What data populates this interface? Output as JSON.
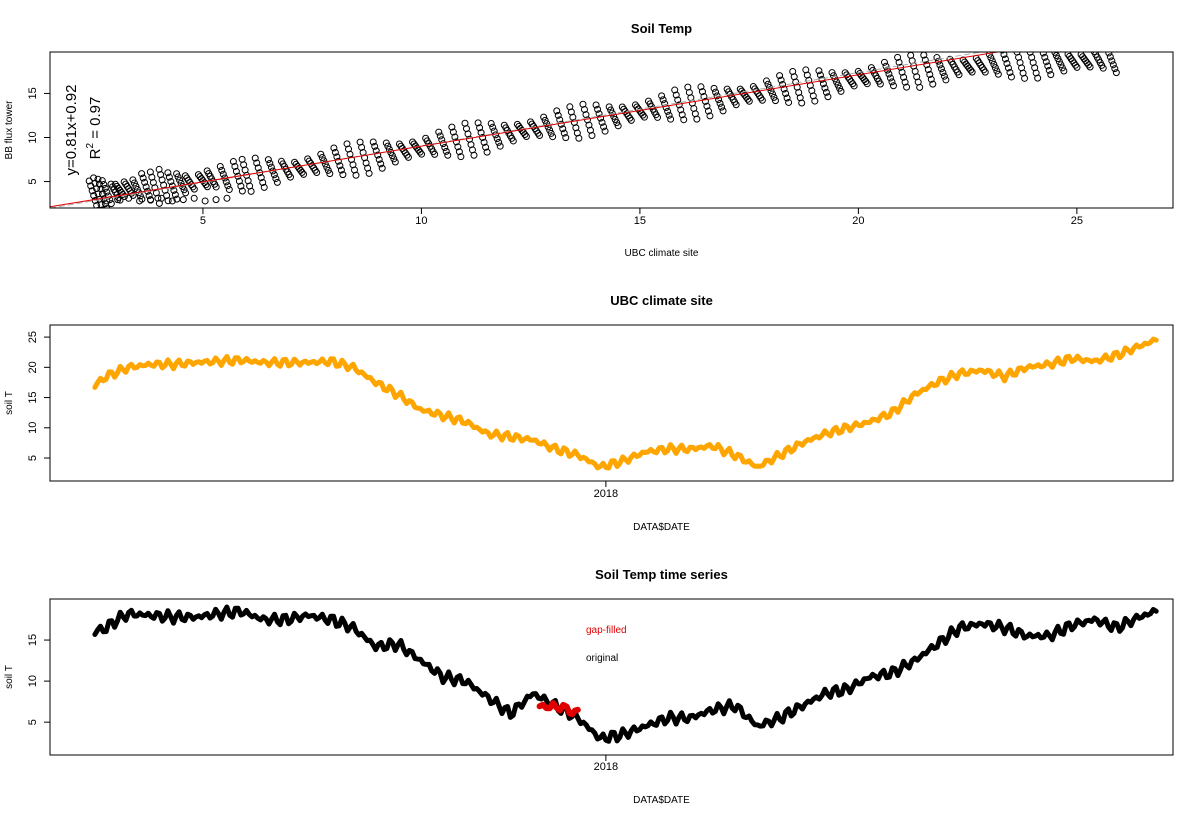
{
  "chart_data": [
    {
      "type": "scatter",
      "title": "Soil Temp",
      "xlabel": "UBC climate site",
      "ylabel": "BB flux tower",
      "xlim": [
        1.5,
        27.2
      ],
      "ylim": [
        2.0,
        19.7
      ],
      "xticks": [
        5,
        10,
        15,
        20,
        25
      ],
      "yticks": [
        5,
        10,
        15
      ],
      "x_tick_labels": [
        "5",
        "10",
        "15",
        "20",
        "25"
      ],
      "y_tick_labels": [
        "5",
        "10",
        "15"
      ],
      "annotation_equation": "y=0.81x+0.92",
      "annotation_r2_base": "R",
      "annotation_r2_sup": "2",
      "annotation_r2_value": " = 0.97",
      "fit_line": {
        "slope": 0.81,
        "intercept": 0.92,
        "color": "#e00000"
      },
      "reference_line": {
        "slope": 0.81,
        "intercept": 0.92,
        "color": "#aaaaaa"
      },
      "point_color": "#000000",
      "series": [
        {
          "values_x": [
            2.5,
            2.6,
            2.7,
            2.8,
            3.0,
            3.1,
            3.3,
            3.5,
            3.7,
            3.9,
            4.1,
            4.3,
            4.5,
            4.7,
            5.0,
            5.2,
            5.5,
            5.8,
            6.0,
            6.3,
            6.6,
            6.9,
            7.2,
            7.5,
            7.8,
            8.1,
            8.4,
            8.7,
            9.0,
            9.3,
            9.6,
            9.9,
            10.2,
            10.5,
            10.8,
            11.1,
            11.4,
            11.7,
            12.0,
            12.3,
            12.6,
            12.9,
            13.2,
            13.5,
            13.8,
            14.1,
            14.4,
            14.7,
            15.0,
            15.3,
            15.6,
            15.9,
            16.2,
            16.5,
            16.8,
            17.1,
            17.4,
            17.7,
            18.0,
            18.3,
            18.6,
            18.9,
            19.2,
            19.5,
            19.8,
            20.1,
            20.4,
            20.7,
            21.0,
            21.3,
            21.6,
            21.9,
            22.2,
            22.5,
            22.8,
            23.1,
            23.4,
            23.7,
            24.0,
            24.3,
            24.6,
            24.9,
            25.2,
            25.5,
            25.8
          ],
          "values_y": [
            3.4,
            3.6,
            3.6,
            3.8,
            3.8,
            4.0,
            4.2,
            4.1,
            4.4,
            4.3,
            4.6,
            4.5,
            4.8,
            4.9,
            5.1,
            5.3,
            5.4,
            5.6,
            5.7,
            6.0,
            6.2,
            6.4,
            6.5,
            6.8,
            7.0,
            7.3,
            7.5,
            7.7,
            8.0,
            8.3,
            8.5,
            8.8,
            9.0,
            9.3,
            9.5,
            9.8,
            10.0,
            10.3,
            10.5,
            10.8,
            11.0,
            11.2,
            11.5,
            11.7,
            12.0,
            12.2,
            12.4,
            12.7,
            13.0,
            13.2,
            13.4,
            13.7,
            13.9,
            14.1,
            14.3,
            14.6,
            14.8,
            15.0,
            15.3,
            15.5,
            15.7,
            15.9,
            16.1,
            16.3,
            16.6,
            16.8,
            17.0,
            17.2,
            17.4,
            17.5,
            17.7,
            17.8,
            18.0,
            18.1,
            18.2,
            18.3,
            18.4,
            18.5,
            18.5,
            18.6,
            18.6,
            18.7,
            18.7,
            18.8,
            18.7
          ]
        }
      ]
    },
    {
      "type": "line",
      "title": "UBC climate site",
      "xlabel": "DATA$DATE",
      "ylabel": "soil T",
      "xlim": [
        0,
        100
      ],
      "ylim": [
        1.2,
        27.0
      ],
      "xticks": [
        49.5
      ],
      "x_tick_labels": [
        "2018"
      ],
      "yticks": [
        5,
        10,
        15,
        20,
        25
      ],
      "y_tick_labels": [
        "5",
        "10",
        "15",
        "20",
        "25"
      ],
      "series": [
        {
          "color": "#ffa500",
          "x": [
            4,
            5,
            7,
            9,
            11,
            13,
            15,
            17,
            19,
            21,
            23,
            25,
            27,
            29,
            31,
            33,
            35,
            37,
            39,
            41,
            43,
            45,
            47,
            49,
            51,
            53,
            55,
            57,
            59,
            61,
            63,
            65,
            67,
            69,
            71,
            73,
            75,
            77,
            79,
            81,
            83,
            85,
            87,
            89,
            91,
            93,
            95,
            97,
            98.5
          ],
          "y": [
            17.0,
            18.5,
            20.0,
            20.5,
            20.5,
            20.8,
            21.0,
            21.2,
            20.8,
            20.8,
            20.8,
            21.0,
            20.0,
            17.5,
            15.5,
            13.0,
            12.0,
            11.0,
            9.0,
            8.5,
            8.0,
            6.5,
            5.5,
            3.5,
            4.5,
            6.0,
            6.5,
            6.5,
            7.0,
            5.5,
            3.5,
            5.5,
            7.5,
            9.0,
            10.0,
            11.0,
            12.5,
            15.5,
            17.5,
            19.0,
            19.5,
            18.5,
            20.0,
            20.5,
            21.5,
            21.0,
            22.0,
            23.5,
            24.5
          ]
        }
      ]
    },
    {
      "type": "line",
      "title": "Soil Temp time series",
      "xlabel": "DATA$DATE",
      "ylabel": "soil T",
      "xlim": [
        0,
        100
      ],
      "ylim": [
        1.0,
        20.0
      ],
      "xticks": [
        49.5
      ],
      "x_tick_labels": [
        "2018"
      ],
      "yticks": [
        5,
        10,
        15
      ],
      "y_tick_labels": [
        "5",
        "10",
        "15"
      ],
      "legend": {
        "placement": "top-center",
        "entries": [
          {
            "label": "gap-filled",
            "color": "#e00000"
          },
          {
            "label": "original",
            "color": "#000000"
          }
        ]
      },
      "series": [
        {
          "name": "original",
          "color": "#000000",
          "x": [
            4,
            5,
            6,
            7,
            9,
            11,
            13,
            15,
            17,
            19,
            21,
            23,
            25,
            27,
            29,
            31,
            33,
            35,
            37,
            39,
            41,
            43,
            45,
            47,
            49,
            51,
            53,
            55,
            57,
            59,
            61,
            63,
            65,
            67,
            69,
            71,
            73,
            75,
            77,
            79,
            81,
            83,
            85,
            87,
            89,
            91,
            93,
            95,
            97,
            98.5
          ],
          "y": [
            16.0,
            16.5,
            17.5,
            18.2,
            18.0,
            17.8,
            17.8,
            18.2,
            18.5,
            17.5,
            17.5,
            18.0,
            17.5,
            16.5,
            14.2,
            14.5,
            12.5,
            10.5,
            10.0,
            8.0,
            6.0,
            8.5,
            7.0,
            5.5,
            3.0,
            3.5,
            4.5,
            5.5,
            5.5,
            6.5,
            7.0,
            4.5,
            5.5,
            7.0,
            8.5,
            9.0,
            10.5,
            11.0,
            12.5,
            14.5,
            16.5,
            17.0,
            16.5,
            15.5,
            15.5,
            16.8,
            17.5,
            16.5,
            17.8,
            18.5
          ]
        },
        {
          "name": "gap-filled",
          "color": "#e00000",
          "x": [
            43.6,
            44.2,
            44.8,
            45.4,
            46.0,
            46.5,
            47.0
          ],
          "y": [
            7.4,
            7.0,
            7.1,
            6.3,
            6.8,
            6.0,
            6.5
          ]
        }
      ]
    }
  ]
}
